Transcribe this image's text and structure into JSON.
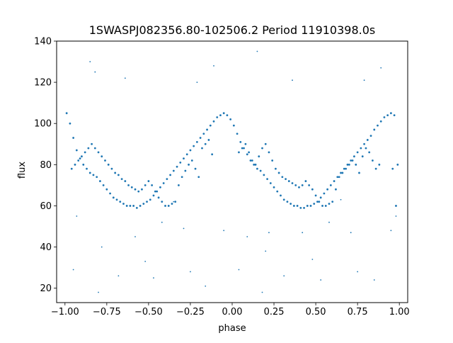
{
  "chart_data": {
    "type": "scatter",
    "title": "1SWASPJ082356.80-102506.2 Period 11910398.0s",
    "xlabel": "phase",
    "ylabel": "flux",
    "xlim": [
      -1.05,
      1.05
    ],
    "ylim": [
      13,
      140
    ],
    "xticks": [
      -1.0,
      -0.75,
      -0.5,
      -0.25,
      0.0,
      0.25,
      0.5,
      0.75,
      1.0
    ],
    "xtick_labels": [
      "−1.00",
      "−0.75",
      "−0.50",
      "−0.25",
      "0.00",
      "0.25",
      "0.50",
      "0.75",
      "1.00"
    ],
    "yticks": [
      20,
      40,
      60,
      80,
      100,
      120,
      140
    ],
    "ytick_labels": [
      "20",
      "40",
      "60",
      "80",
      "100",
      "120",
      "140"
    ],
    "grid": false,
    "marker_color": "#1f77b4",
    "series": [
      {
        "x": [
          -0.99,
          -0.97,
          -0.95,
          -0.93,
          -0.91,
          -0.89,
          -0.87,
          -0.85,
          -0.83,
          -0.81,
          -0.79,
          -0.77,
          -0.75,
          -0.73,
          -0.71,
          -0.69,
          -0.67,
          -0.65,
          -0.63,
          -0.61,
          -0.59,
          -0.57,
          -0.55,
          -0.53,
          -0.51,
          -0.49,
          -0.47,
          -0.45,
          -0.43,
          -0.41,
          -0.39,
          -0.37,
          -0.35,
          -0.33,
          -0.31,
          -0.29,
          -0.27,
          -0.25,
          -0.23,
          -0.21,
          -0.19,
          -0.17,
          -0.15,
          -0.13,
          -0.11,
          -0.09,
          -0.07,
          -0.05,
          -0.03,
          -0.01,
          0.01,
          0.03,
          0.05,
          0.07,
          0.09,
          0.11,
          0.13,
          0.15,
          0.17,
          0.19,
          0.21,
          0.23,
          0.25,
          0.27,
          0.29,
          0.31,
          0.33,
          0.35,
          0.37,
          0.39,
          0.41,
          0.43,
          0.45,
          0.47,
          0.49,
          0.51,
          0.53,
          0.55,
          0.57,
          0.59,
          0.61,
          0.63,
          0.65,
          0.67,
          0.69,
          0.71,
          0.73,
          0.75,
          0.77,
          0.79,
          0.81,
          0.83,
          0.85,
          0.87,
          0.89,
          0.91,
          0.93,
          0.95,
          0.97,
          0.99
        ],
        "y": [
          105,
          100,
          93,
          87,
          83,
          80,
          78,
          76,
          75,
          74,
          72,
          70,
          68,
          66,
          64,
          63,
          62,
          61,
          60,
          60,
          60,
          59,
          60,
          61,
          62,
          63,
          65,
          67,
          69,
          71,
          73,
          75,
          77,
          79,
          81,
          83,
          85,
          87,
          89,
          91,
          93,
          95,
          97,
          99,
          101,
          103,
          104,
          105,
          104,
          102,
          99,
          95,
          91,
          88,
          85,
          82,
          80,
          78,
          77,
          75,
          73,
          71,
          69,
          67,
          65,
          63,
          62,
          61,
          60,
          60,
          59,
          59,
          60,
          60,
          61,
          62,
          64,
          66,
          68,
          70,
          72,
          74,
          76,
          78,
          80,
          82,
          84,
          86,
          88,
          90,
          92,
          94,
          97,
          99,
          101,
          103,
          104,
          105,
          104,
          80
        ]
      },
      {
        "x": [
          -0.96,
          -0.94,
          -0.92,
          -0.9,
          -0.88,
          -0.86,
          -0.84,
          -0.82,
          -0.8,
          -0.78,
          -0.76,
          -0.74,
          -0.72,
          -0.7,
          -0.68,
          -0.66,
          -0.64,
          -0.62,
          -0.6,
          -0.58,
          -0.56,
          -0.54,
          -0.52,
          -0.5,
          -0.48,
          -0.46,
          -0.44,
          -0.42,
          -0.4,
          -0.38,
          -0.36,
          -0.34,
          -0.32,
          -0.3,
          -0.28,
          -0.26,
          -0.24,
          -0.22,
          -0.2,
          -0.18,
          -0.16,
          -0.14,
          -0.12,
          0.04,
          0.06,
          0.08,
          0.1,
          0.12,
          0.14,
          0.16,
          0.18,
          0.2,
          0.22,
          0.24,
          0.26,
          0.28,
          0.3,
          0.32,
          0.34,
          0.36,
          0.38,
          0.4,
          0.42,
          0.44,
          0.46,
          0.48,
          0.5,
          0.52,
          0.54,
          0.56,
          0.58,
          0.6,
          0.62,
          0.64,
          0.66,
          0.68,
          0.7,
          0.72,
          0.74,
          0.76,
          0.78,
          0.8,
          0.82,
          0.84,
          0.86,
          0.88,
          0.96,
          0.98
        ],
        "y": [
          78,
          80,
          82,
          84,
          86,
          88,
          90,
          88,
          86,
          84,
          82,
          80,
          78,
          76,
          75,
          73,
          72,
          70,
          69,
          68,
          67,
          68,
          70,
          72,
          70,
          67,
          64,
          62,
          60,
          60,
          61,
          62,
          70,
          74,
          77,
          80,
          82,
          78,
          74,
          88,
          90,
          92,
          85,
          86,
          88,
          90,
          86,
          82,
          80,
          84,
          88,
          90,
          86,
          82,
          78,
          76,
          74,
          73,
          72,
          71,
          70,
          69,
          70,
          72,
          70,
          68,
          65,
          62,
          60,
          60,
          61,
          62,
          68,
          74,
          76,
          78,
          80,
          82,
          80,
          76,
          84,
          88,
          86,
          82,
          78,
          80,
          78,
          60
        ]
      }
    ],
    "sparse_points": {
      "x": [
        -0.95,
        -0.93,
        -0.85,
        -0.82,
        -0.8,
        -0.78,
        -0.68,
        -0.64,
        -0.58,
        -0.52,
        -0.47,
        -0.42,
        -0.35,
        -0.29,
        -0.25,
        -0.21,
        -0.16,
        -0.11,
        -0.05,
        0.04,
        0.09,
        0.15,
        0.18,
        0.2,
        0.22,
        0.31,
        0.36,
        0.42,
        0.48,
        0.53,
        0.58,
        0.65,
        0.71,
        0.75,
        0.79,
        0.85,
        0.89,
        0.95,
        0.98
      ],
      "y": [
        29,
        55,
        130,
        125,
        18,
        40,
        26,
        122,
        45,
        33,
        25,
        52,
        62,
        49,
        28,
        120,
        21,
        128,
        48,
        29,
        45,
        135,
        18,
        38,
        47,
        26,
        121,
        47,
        34,
        24,
        52,
        63,
        47,
        28,
        121,
        24,
        127,
        48,
        55
      ]
    }
  }
}
